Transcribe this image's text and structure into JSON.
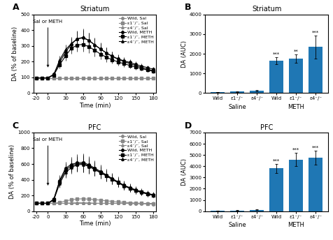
{
  "chart_data": [
    {
      "type": "line",
      "title": "Striatum",
      "x_label": "Time (min)",
      "y_label": "DA (% of baseline)",
      "annotations": [
        {
          "text": "A"
        },
        {
          "text": "Sal or METH",
          "x": 0
        }
      ],
      "x": [
        -20,
        -10,
        0,
        10,
        20,
        30,
        40,
        50,
        60,
        70,
        80,
        90,
        100,
        110,
        120,
        130,
        140,
        150,
        160,
        170,
        180
      ],
      "xlim": [
        -25,
        185
      ],
      "xticks": [
        -20,
        0,
        30,
        60,
        90,
        120,
        150,
        180
      ],
      "ylim": [
        0,
        500
      ],
      "yticks": [
        0,
        100,
        200,
        300,
        400,
        500
      ],
      "legend": "upper right",
      "series": [
        {
          "name": "Wild, Sal",
          "color": "#888888",
          "marker": "circle",
          "values": [
            97,
            97,
            97,
            97,
            97,
            97,
            97,
            97,
            97,
            97,
            97,
            97,
            97,
            97,
            97,
            97,
            97,
            97,
            97,
            97,
            97
          ],
          "errors": [
            5,
            5,
            5,
            5,
            5,
            5,
            5,
            5,
            5,
            5,
            5,
            5,
            5,
            5,
            5,
            5,
            5,
            5,
            5,
            5,
            5
          ]
        },
        {
          "name": "ε1⁻/⁻, Sal",
          "color": "#888888",
          "marker": "square",
          "values": [
            97,
            97,
            97,
            97,
            97,
            97,
            97,
            97,
            97,
            97,
            97,
            97,
            97,
            97,
            97,
            97,
            97,
            97,
            97,
            97,
            97
          ],
          "errors": [
            5,
            5,
            5,
            5,
            5,
            5,
            5,
            5,
            5,
            5,
            5,
            5,
            5,
            5,
            5,
            5,
            5,
            5,
            5,
            5,
            5
          ]
        },
        {
          "name": "ε4⁻/⁻, Sal",
          "color": "#888888",
          "marker": "triangle",
          "values": [
            93,
            93,
            93,
            93,
            93,
            93,
            93,
            93,
            93,
            93,
            93,
            93,
            93,
            93,
            93,
            93,
            93,
            93,
            93,
            93,
            93
          ],
          "errors": [
            5,
            5,
            5,
            5,
            5,
            5,
            5,
            5,
            5,
            5,
            5,
            5,
            5,
            5,
            5,
            5,
            5,
            5,
            5,
            5,
            5
          ]
        },
        {
          "name": "Wild, METH",
          "color": "#000000",
          "marker": "circle",
          "values": [
            97,
            97,
            97,
            120,
            195,
            260,
            310,
            345,
            350,
            335,
            305,
            280,
            255,
            235,
            218,
            205,
            195,
            183,
            172,
            162,
            152
          ],
          "errors": [
            5,
            5,
            5,
            12,
            25,
            30,
            38,
            45,
            50,
            48,
            42,
            38,
            34,
            30,
            26,
            24,
            20,
            18,
            16,
            14,
            12
          ]
        },
        {
          "name": "ε1⁻/⁻, METH",
          "color": "#000000",
          "marker": "square",
          "values": [
            97,
            97,
            97,
            115,
            180,
            235,
            285,
            305,
            310,
            295,
            272,
            248,
            228,
            212,
            198,
            187,
            176,
            165,
            156,
            147,
            138
          ],
          "errors": [
            5,
            5,
            5,
            10,
            22,
            28,
            33,
            40,
            45,
            42,
            38,
            34,
            30,
            26,
            23,
            20,
            18,
            16,
            14,
            12,
            11
          ]
        },
        {
          "name": "ε4⁻/⁻, METH",
          "color": "#000000",
          "marker": "triangle",
          "values": [
            97,
            97,
            97,
            118,
            210,
            275,
            315,
            345,
            355,
            335,
            308,
            280,
            255,
            233,
            215,
            200,
            188,
            175,
            163,
            152,
            143
          ],
          "errors": [
            5,
            5,
            5,
            10,
            28,
            35,
            42,
            50,
            55,
            50,
            45,
            40,
            36,
            32,
            28,
            25,
            22,
            19,
            17,
            15,
            13
          ]
        }
      ]
    },
    {
      "type": "bar",
      "title": "Striatum",
      "y_label": "DA (AUC)",
      "annotations": [
        {
          "text": "B"
        }
      ],
      "categories": [
        "Wild",
        "ε1⁻/⁻",
        "ε4⁻/⁻",
        "Wild",
        "ε1⁻/⁻",
        "ε4⁻/⁻"
      ],
      "groups": [
        {
          "name": "Saline",
          "count": 3
        },
        {
          "name": "METH",
          "count": 3
        }
      ],
      "values": [
        50,
        80,
        120,
        1650,
        1750,
        2350
      ],
      "errors": [
        15,
        20,
        30,
        170,
        200,
        580
      ],
      "significance": [
        null,
        null,
        null,
        "***",
        "**",
        "***"
      ],
      "ylim": [
        0,
        4000
      ],
      "yticks": [
        0,
        1000,
        2000,
        3000,
        4000
      ]
    },
    {
      "type": "line",
      "title": "PFC",
      "x_label": "Time (min)",
      "y_label": "DA (% of baseline)",
      "annotations": [
        {
          "text": "C"
        },
        {
          "text": "Sal or METH",
          "x": 0
        }
      ],
      "x": [
        -20,
        -10,
        0,
        10,
        20,
        30,
        40,
        50,
        60,
        70,
        80,
        90,
        100,
        110,
        120,
        130,
        140,
        150,
        160,
        170,
        180
      ],
      "xlim": [
        -25,
        185
      ],
      "xticks": [
        -20,
        0,
        30,
        60,
        90,
        120,
        150,
        180
      ],
      "ylim": [
        0,
        1000
      ],
      "yticks": [
        0,
        200,
        400,
        600,
        800,
        1000
      ],
      "legend": "upper right",
      "series": [
        {
          "name": "Wild, Sal",
          "color": "#888888",
          "marker": "circle",
          "values": [
            100,
            100,
            100,
            100,
            100,
            100,
            105,
            107,
            107,
            105,
            102,
            100,
            100,
            100,
            100,
            100,
            98,
            96,
            95,
            93,
            90
          ],
          "errors": [
            5,
            5,
            5,
            5,
            5,
            5,
            8,
            8,
            8,
            8,
            6,
            6,
            6,
            6,
            6,
            6,
            6,
            6,
            5,
            5,
            5
          ]
        },
        {
          "name": "ε1⁻/⁻, Sal",
          "color": "#888888",
          "marker": "square",
          "values": [
            100,
            100,
            100,
            100,
            110,
            130,
            145,
            155,
            158,
            153,
            148,
            140,
            132,
            125,
            118,
            113,
            108,
            103,
            100,
            96,
            93
          ],
          "errors": [
            5,
            5,
            5,
            5,
            8,
            15,
            20,
            22,
            22,
            20,
            18,
            16,
            14,
            12,
            10,
            9,
            8,
            7,
            6,
            5,
            5
          ]
        },
        {
          "name": "ε4⁻/⁻, Sal",
          "color": "#888888",
          "marker": "triangle",
          "values": [
            100,
            100,
            100,
            100,
            100,
            100,
            100,
            100,
            100,
            100,
            100,
            100,
            100,
            100,
            100,
            100,
            100,
            100,
            100,
            100,
            100
          ],
          "errors": [
            5,
            5,
            5,
            5,
            5,
            5,
            5,
            5,
            5,
            5,
            5,
            5,
            5,
            5,
            5,
            5,
            5,
            5,
            5,
            5,
            5
          ]
        },
        {
          "name": "Wild, METH",
          "color": "#000000",
          "marker": "circle",
          "values": [
            100,
            100,
            100,
            155,
            390,
            545,
            595,
            615,
            620,
            590,
            548,
            505,
            462,
            415,
            373,
            330,
            300,
            272,
            248,
            228,
            210
          ],
          "errors": [
            8,
            8,
            8,
            20,
            65,
            85,
            95,
            105,
            115,
            105,
            95,
            85,
            78,
            72,
            65,
            58,
            52,
            47,
            42,
            38,
            34
          ]
        },
        {
          "name": "ε1⁻/⁻, METH",
          "color": "#000000",
          "marker": "square",
          "values": [
            100,
            100,
            100,
            148,
            370,
            520,
            578,
            600,
            605,
            578,
            535,
            492,
            452,
            408,
            367,
            325,
            294,
            265,
            242,
            222,
            204
          ],
          "errors": [
            8,
            8,
            8,
            18,
            58,
            78,
            88,
            98,
            108,
            98,
            88,
            78,
            72,
            65,
            59,
            52,
            47,
            42,
            37,
            34,
            30
          ]
        },
        {
          "name": "ε4⁻/⁻, METH",
          "color": "#000000",
          "marker": "triangle",
          "values": [
            100,
            100,
            100,
            140,
            350,
            490,
            555,
            590,
            595,
            568,
            528,
            488,
            448,
            403,
            362,
            320,
            290,
            260,
            237,
            218,
            200
          ],
          "errors": [
            8,
            8,
            8,
            15,
            52,
            70,
            80,
            90,
            100,
            90,
            80,
            70,
            65,
            58,
            52,
            46,
            42,
            37,
            33,
            30,
            27
          ]
        }
      ]
    },
    {
      "type": "bar",
      "title": "PFC",
      "y_label": "DA (AUC)",
      "annotations": [
        {
          "text": "D"
        }
      ],
      "categories": [
        "Wild",
        "ε1⁻/⁻",
        "ε4⁻/⁻",
        "Wild",
        "ε1⁻/⁻",
        "ε4⁻/⁻"
      ],
      "groups": [
        {
          "name": "Saline",
          "count": 3
        },
        {
          "name": "METH",
          "count": 3
        }
      ],
      "values": [
        50,
        60,
        120,
        3800,
        4600,
        4750
      ],
      "errors": [
        15,
        20,
        35,
        380,
        600,
        600
      ],
      "significance": [
        null,
        null,
        null,
        "***",
        "***",
        "***"
      ],
      "ylim": [
        0,
        7000
      ],
      "yticks": [
        0,
        1000,
        2000,
        3000,
        4000,
        5000,
        6000,
        7000
      ]
    }
  ]
}
